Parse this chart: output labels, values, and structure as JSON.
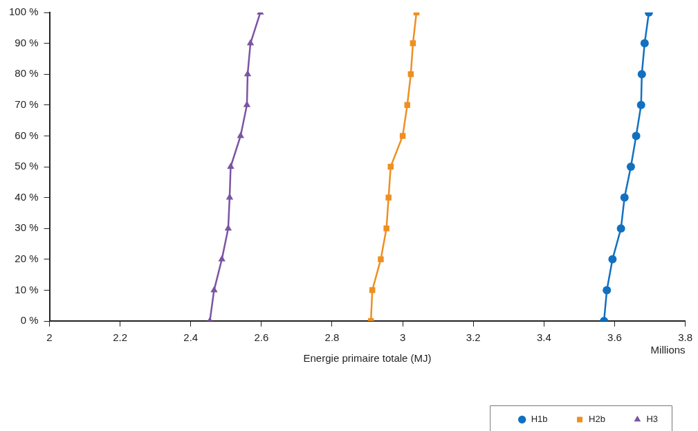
{
  "chart_data": {
    "type": "line",
    "xlabel": "Energie primaire totale (MJ)",
    "annotations": [
      "Millions"
    ],
    "xlim": [
      2,
      3.8
    ],
    "xticks": [
      2,
      2.2,
      2.4,
      2.6,
      2.8,
      3,
      3.2,
      3.4,
      3.6,
      3.8
    ],
    "ylim": [
      0,
      100
    ],
    "yticks": [
      {
        "value": 0,
        "label": "0 %"
      },
      {
        "value": 10,
        "label": "10 %"
      },
      {
        "value": 20,
        "label": "20 %"
      },
      {
        "value": 30,
        "label": "30 %"
      },
      {
        "value": 40,
        "label": "40 %"
      },
      {
        "value": 50,
        "label": "50 %"
      },
      {
        "value": 60,
        "label": "60 %"
      },
      {
        "value": 70,
        "label": "70 %"
      },
      {
        "value": 80,
        "label": "80 %"
      },
      {
        "value": 90,
        "label": "90 %"
      },
      {
        "value": 100,
        "label": "100 %"
      }
    ],
    "grid": false,
    "legend": "bottom right",
    "line_style": "solid",
    "series": [
      {
        "name": "H1b",
        "color": "#1170c0",
        "marker": "circle",
        "x": [
          3.57,
          3.578,
          3.594,
          3.618,
          3.628,
          3.646,
          3.661,
          3.675,
          3.677,
          3.685,
          3.697
        ],
        "values": [
          0,
          10,
          20,
          30,
          40,
          50,
          60,
          70,
          80,
          90,
          100
        ]
      },
      {
        "name": "H2b",
        "color": "#ee8f22",
        "marker": "square",
        "x": [
          2.91,
          2.914,
          2.938,
          2.954,
          2.96,
          2.966,
          3,
          3.013,
          3.023,
          3.029,
          3.039
        ],
        "values": [
          0,
          10,
          20,
          30,
          40,
          50,
          60,
          70,
          80,
          90,
          100
        ]
      },
      {
        "name": "H3",
        "color": "#7b54a3",
        "marker": "triangle",
        "x": [
          2.454,
          2.466,
          2.488,
          2.506,
          2.51,
          2.513,
          2.541,
          2.559,
          2.561,
          2.569,
          2.597
        ],
        "values": [
          0,
          10,
          20,
          30,
          40,
          50,
          60,
          70,
          80,
          90,
          100
        ]
      }
    ]
  }
}
